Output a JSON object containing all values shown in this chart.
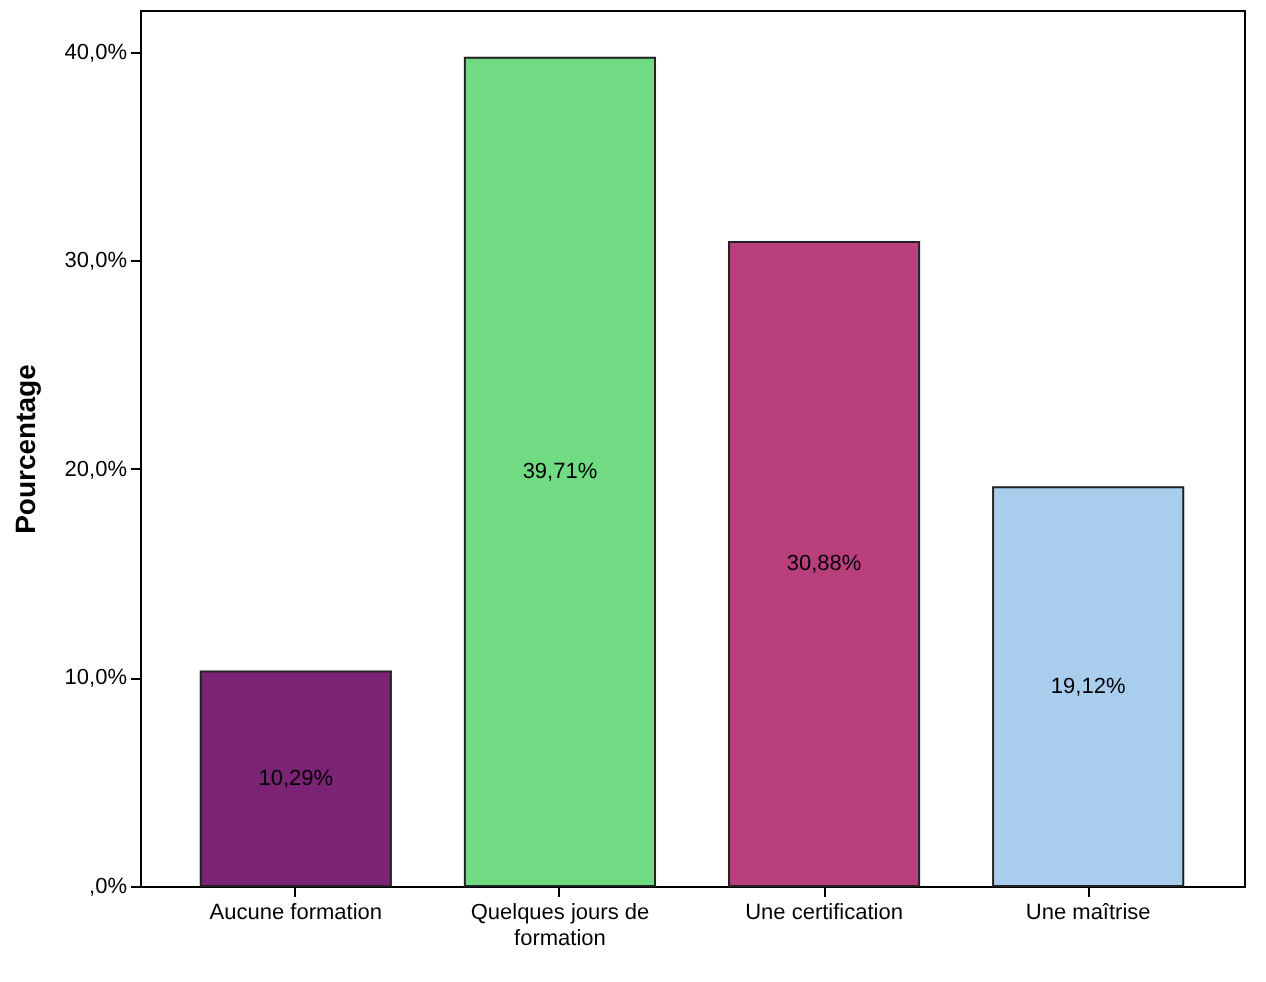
{
  "chart_data": {
    "type": "bar",
    "ylabel": "Pourcentage",
    "categories": [
      "Aucune formation",
      "Quelques jours de formation",
      "Une certification",
      "Une maîtrise"
    ],
    "values": [
      10.29,
      39.71,
      30.88,
      19.12
    ],
    "colors": [
      "#7b2374",
      "#70db82",
      "#b93f7c",
      "#a9cdec"
    ],
    "value_labels": [
      "10,29%",
      "39,71%",
      "30,88%",
      "19,12%"
    ],
    "ylim": [
      0,
      42
    ],
    "yticks": [
      {
        "value": 0,
        "label": ",0%"
      },
      {
        "value": 10,
        "label": "10,0%"
      },
      {
        "value": 20,
        "label": "20,0%"
      },
      {
        "value": 30,
        "label": "30,0%"
      },
      {
        "value": 40,
        "label": "40,0%"
      }
    ],
    "grid": false,
    "legend": false
  }
}
